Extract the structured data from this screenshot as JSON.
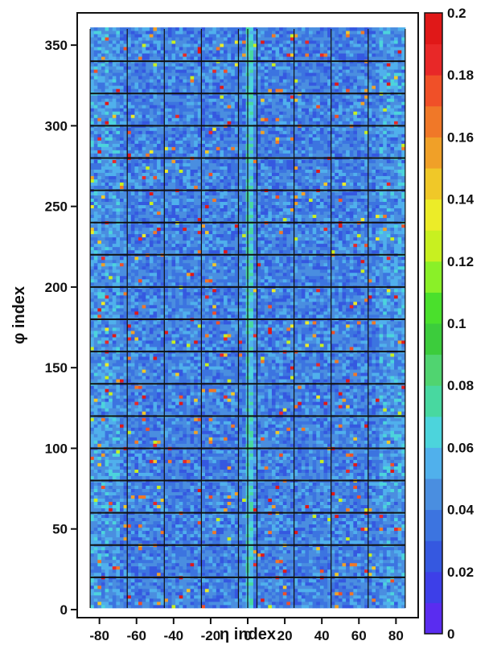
{
  "chart_data": {
    "type": "heatmap",
    "xlabel": "η index",
    "ylabel": "φ index",
    "x_ticks": [
      -80,
      -60,
      -40,
      -20,
      0,
      20,
      40,
      60,
      80
    ],
    "x_tick_labels": [
      "-80",
      "-60",
      "-40",
      "-20",
      "0",
      "20",
      "40",
      "60",
      "80"
    ],
    "y_ticks": [
      0,
      50,
      100,
      150,
      200,
      250,
      300,
      350
    ],
    "y_tick_labels": [
      "0",
      "50",
      "100",
      "150",
      "200",
      "250",
      "300",
      "350"
    ],
    "xlim": [
      -92,
      92
    ],
    "ylim": [
      -5,
      370
    ],
    "data_x_range": [
      -85,
      85
    ],
    "data_y_range": [
      1,
      360
    ],
    "colorbar": {
      "min": 0,
      "max": 0.2,
      "ticks": [
        0,
        0.02,
        0.04,
        0.06,
        0.08,
        0.1,
        0.12,
        0.14,
        0.16,
        0.18,
        0.2
      ],
      "tick_labels": [
        "0",
        "0.02",
        "0.04",
        "0.06",
        "0.08",
        "0.1",
        "0.12",
        "0.14",
        "0.16",
        "0.18",
        "0.2"
      ],
      "colors": [
        "#5a2cf0",
        "#3d3fe8",
        "#3558e0",
        "#3c74e0",
        "#4a8ee0",
        "#50b0ec",
        "#4cd4dc",
        "#48d8a0",
        "#50d470",
        "#3ccc3c",
        "#4ae02c",
        "#8af028",
        "#c8f020",
        "#ecec28",
        "#f0c828",
        "#f0a028",
        "#f07828",
        "#f05028",
        "#e82828",
        "#e01818"
      ]
    },
    "supermodule_boundaries_phi": [
      20,
      40,
      60,
      80,
      100,
      120,
      140,
      160,
      180,
      200,
      220,
      240,
      260,
      280,
      300,
      320,
      340
    ],
    "module_boundaries_eta": [
      -85,
      -65,
      -45,
      -25,
      -5,
      0,
      5,
      25,
      45,
      65,
      85
    ],
    "typical_value": 0.04,
    "value_range": [
      0,
      0.2
    ]
  }
}
